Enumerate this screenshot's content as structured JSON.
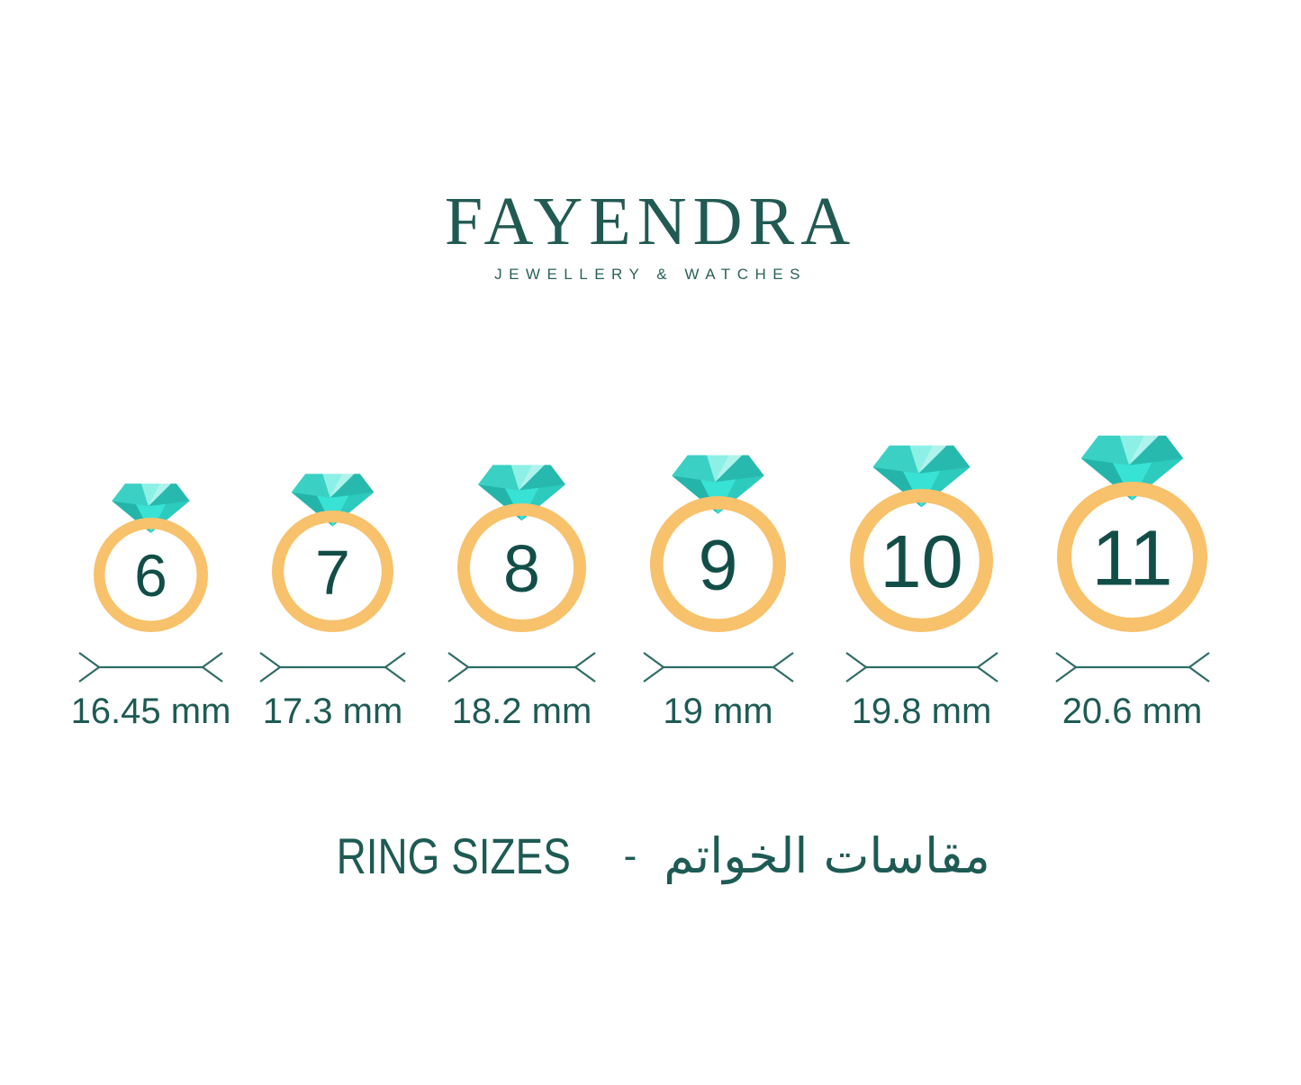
{
  "brand": {
    "name": "FAYENDRA",
    "tagline": "JEWELLERY & WATCHES"
  },
  "rings": [
    {
      "size": "6",
      "diameter_label": "16.45 mm"
    },
    {
      "size": "7",
      "diameter_label": "17.3 mm"
    },
    {
      "size": "8",
      "diameter_label": "18.2 mm"
    },
    {
      "size": "9",
      "diameter_label": "19 mm"
    },
    {
      "size": "10",
      "diameter_label": "19.8 mm"
    },
    {
      "size": "11",
      "diameter_label": "20.6 mm"
    }
  ],
  "footer": {
    "title_en": "RING SIZES",
    "separator": "-",
    "title_ar": "مقاسات الخواتم"
  },
  "colors": {
    "brand_teal": "#215a52",
    "tagline_teal": "#2a6058",
    "number_teal": "#124e48",
    "label_teal": "#1d5b54",
    "measure_teal": "#2e6c65",
    "band_orange": "#f8c16b",
    "diamond": {
      "crown_left": "#3bd0c4",
      "crown_center": "#8df0e7",
      "crown_right_inner": "#aef4ed",
      "crown_right": "#28b9ae",
      "pavilion_left": "#23b5aa",
      "pavilion_center": "#38e2d5",
      "pavilion_right": "#2dcabe"
    }
  }
}
